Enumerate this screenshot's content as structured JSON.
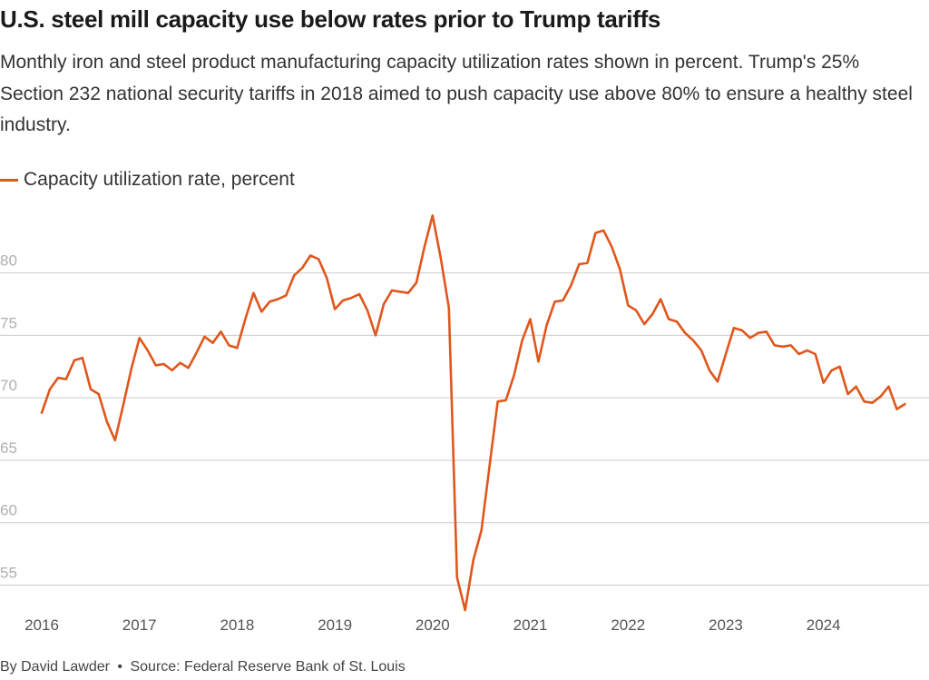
{
  "title": "U.S. steel mill capacity use below rates prior to Trump tariffs",
  "subtitle": "Monthly iron and steel product manufacturing capacity utilization rates shown in percent. Trump's 25% Section 232 national security tariffs in 2018 aimed to push capacity use above 80% to ensure a healthy steel industry.",
  "legend_label": "Capacity utilization rate, percent",
  "footer": {
    "author": "By David Lawder",
    "separator": "•",
    "source": "Source: Federal Reserve Bank of St. Louis"
  },
  "colors": {
    "line": "#e0561c",
    "grid": "#cccccc",
    "tick_text": "#b0b0b0",
    "axis_text": "#555555"
  },
  "chart_data": {
    "type": "line",
    "title": "U.S. steel mill capacity use below rates prior to Trump tariffs",
    "xlabel": "",
    "ylabel": "",
    "ylim": [
      53,
      85.5
    ],
    "xlim": [
      2016.0,
      2024.95
    ],
    "grid": true,
    "legend_position": "top-left",
    "y_ticks": [
      55,
      60,
      65,
      70,
      75,
      80
    ],
    "x_ticks": [
      2016,
      2017,
      2018,
      2019,
      2020,
      2021,
      2022,
      2023,
      2024
    ],
    "series": [
      {
        "name": "Capacity utilization rate, percent",
        "start_year": 2016,
        "start_month": 1,
        "values": [
          68.8,
          70.7,
          71.6,
          71.5,
          73.0,
          73.2,
          70.7,
          70.3,
          68.1,
          66.6,
          69.4,
          72.3,
          74.8,
          73.8,
          72.6,
          72.7,
          72.2,
          72.8,
          72.4,
          73.6,
          74.9,
          74.4,
          75.3,
          74.2,
          74.0,
          76.3,
          78.4,
          76.9,
          77.7,
          77.9,
          78.2,
          79.8,
          80.4,
          81.4,
          81.1,
          79.6,
          77.1,
          77.8,
          78.0,
          78.3,
          77.0,
          75.0,
          77.5,
          78.6,
          78.5,
          78.4,
          79.2,
          82.1,
          84.6,
          81.2,
          77.2,
          55.6,
          53.0,
          57.0,
          59.4,
          64.6,
          69.7,
          69.8,
          71.8,
          74.6,
          76.3,
          72.9,
          75.8,
          77.7,
          77.8,
          79.0,
          80.7,
          80.8,
          83.2,
          83.4,
          82.1,
          80.3,
          77.4,
          77.0,
          75.9,
          76.7,
          77.9,
          76.3,
          76.1,
          75.2,
          74.6,
          73.8,
          72.2,
          71.3,
          73.5,
          75.6,
          75.4,
          74.8,
          75.2,
          75.3,
          74.2,
          74.1,
          74.2,
          73.5,
          73.8,
          73.5,
          71.2,
          72.2,
          72.5,
          70.3,
          70.9,
          69.7,
          69.6,
          70.1,
          70.9,
          69.1,
          69.5
        ]
      }
    ]
  }
}
